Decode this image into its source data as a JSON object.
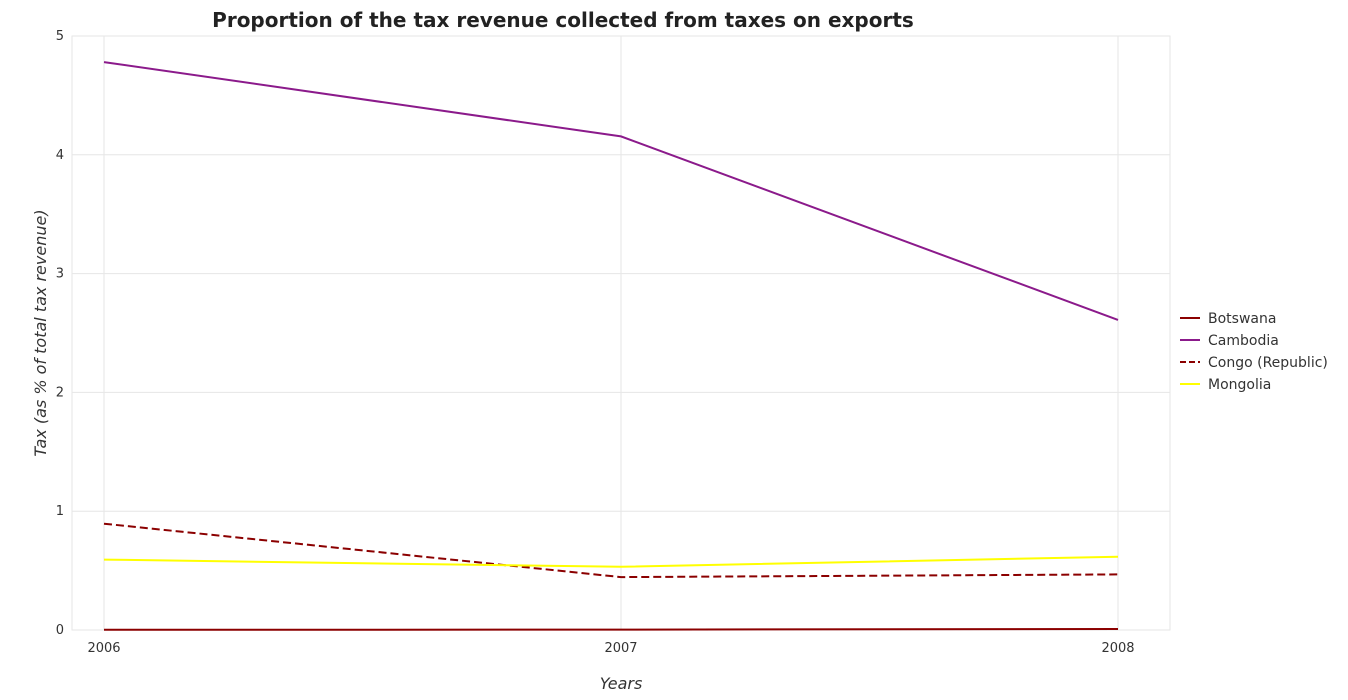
{
  "chart_data": {
    "type": "line",
    "title": "Proportion of the tax revenue collected from taxes on exports",
    "xlabel": "Years",
    "ylabel": "Tax (as % of total tax revenue)",
    "x": [
      "2006",
      "2007",
      "2008"
    ],
    "ylim": [
      0,
      5
    ],
    "yticks": [
      "0",
      "1",
      "2",
      "3",
      "4",
      "5"
    ],
    "grid": true,
    "legend_position": "right",
    "series": [
      {
        "name": "Botswana",
        "color": "#8b0000",
        "values": [
          0.002,
          0.003,
          0.008
        ]
      },
      {
        "name": "Cambodia",
        "color": "#8b1a8b",
        "values": [
          4.78,
          4.155,
          2.61
        ]
      },
      {
        "name": "Congo (Republic)",
        "color": "#8b0000",
        "dashed": true,
        "values": [
          0.895,
          0.445,
          0.468
        ]
      },
      {
        "name": "Mongolia",
        "color": "#ffff00",
        "values": [
          0.593,
          0.532,
          0.617
        ]
      }
    ]
  }
}
